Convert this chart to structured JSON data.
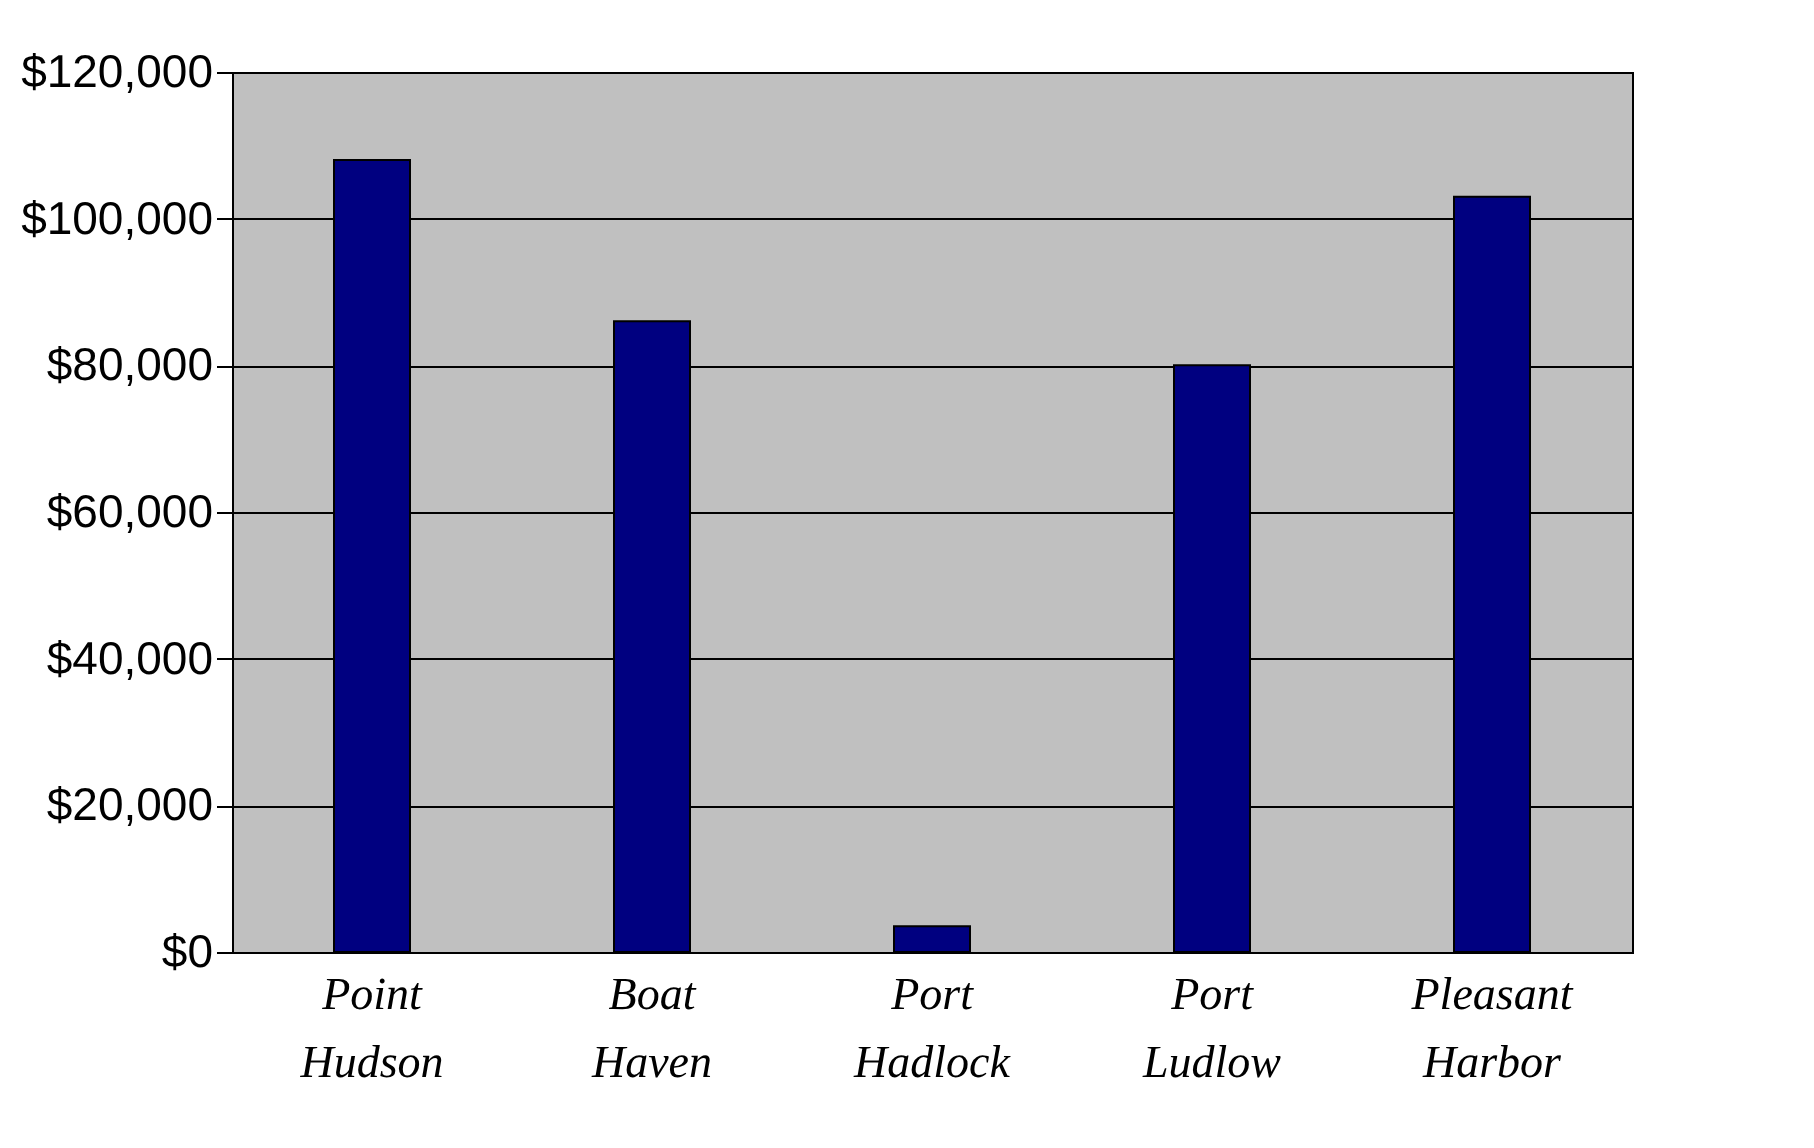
{
  "chart_data": {
    "type": "bar",
    "categories": [
      "Point Hudson",
      "Boat Haven",
      "Port Hadlock",
      "Port Ludlow",
      "Pleasant Harbor"
    ],
    "values": [
      108000,
      86000,
      3500,
      80000,
      103000
    ],
    "color": "#000080",
    "ylim": [
      0,
      120000
    ],
    "yticks": [
      {
        "value": 0,
        "label": "$0"
      },
      {
        "value": 20000,
        "label": "$20,000"
      },
      {
        "value": 40000,
        "label": "$40,000"
      },
      {
        "value": 60000,
        "label": "$60,000"
      },
      {
        "value": 80000,
        "label": "$80,000"
      },
      {
        "value": 100000,
        "label": "$100,000"
      },
      {
        "value": 120000,
        "label": "$120,000"
      }
    ],
    "grid": "y"
  }
}
